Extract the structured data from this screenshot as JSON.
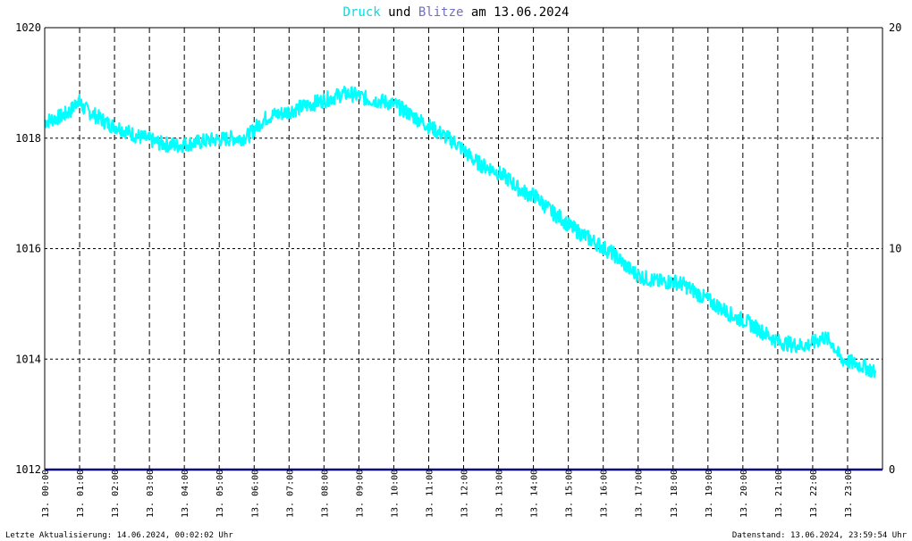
{
  "title": {
    "part1": "Druck",
    "part2": " und ",
    "part3": "Blitze",
    "part4": " am 13.06.2024",
    "color1": "#00e0e0",
    "color3": "#7070c0",
    "color_text": "#000000"
  },
  "footer": {
    "left": "Letzte Aktualisierung: 14.06.2024, 00:02:02 Uhr",
    "right": "Datenstand: 13.06.2024, 23:59:54 Uhr"
  },
  "chart_data": {
    "type": "line",
    "title": "Druck und Blitze am 13.06.2024",
    "grid": true,
    "y_left": {
      "min": 1012,
      "max": 1020,
      "ticks": [
        "1012",
        "1014",
        "1016",
        "1018",
        "1020"
      ]
    },
    "y_right": {
      "min": 0,
      "max": 20,
      "ticks": [
        "0",
        "10",
        "20"
      ]
    },
    "x_range_hours": [
      0,
      24
    ],
    "x_ticks": [
      {
        "hour": 0,
        "label": "13. 00:00"
      },
      {
        "hour": 1,
        "label": "13. 01:00"
      },
      {
        "hour": 2,
        "label": "13. 02:00"
      },
      {
        "hour": 3,
        "label": "13. 03:00"
      },
      {
        "hour": 4,
        "label": "13. 04:00"
      },
      {
        "hour": 5,
        "label": "13. 05:00"
      },
      {
        "hour": 6,
        "label": "13. 06:00"
      },
      {
        "hour": 7,
        "label": "13. 07:00"
      },
      {
        "hour": 8,
        "label": "13. 08:00"
      },
      {
        "hour": 9,
        "label": "13. 09:00"
      },
      {
        "hour": 10,
        "label": "13. 10:00"
      },
      {
        "hour": 11,
        "label": "13. 11:00"
      },
      {
        "hour": 12,
        "label": "13. 12:00"
      },
      {
        "hour": 13,
        "label": "13. 13:00"
      },
      {
        "hour": 14,
        "label": "13. 14:00"
      },
      {
        "hour": 15,
        "label": "13. 15:00"
      },
      {
        "hour": 16,
        "label": "13. 16:00"
      },
      {
        "hour": 17,
        "label": "13. 17:00"
      },
      {
        "hour": 18,
        "label": "13. 18:00"
      },
      {
        "hour": 19,
        "label": "13. 19:00"
      },
      {
        "hour": 20,
        "label": "13. 20:00"
      },
      {
        "hour": 21,
        "label": "13. 21:00"
      },
      {
        "hour": 22,
        "label": "13. 22:00"
      },
      {
        "hour": 23,
        "label": "13. 23:00"
      }
    ],
    "series": [
      {
        "name": "Druck",
        "axis": "left",
        "color": "#00ffff",
        "points": [
          [
            0.0,
            1018.3
          ],
          [
            0.25,
            1018.35
          ],
          [
            0.5,
            1018.4
          ],
          [
            0.75,
            1018.5
          ],
          [
            0.95,
            1018.7
          ],
          [
            1.1,
            1018.55
          ],
          [
            1.35,
            1018.45
          ],
          [
            1.6,
            1018.35
          ],
          [
            1.85,
            1018.25
          ],
          [
            2.1,
            1018.2
          ],
          [
            2.35,
            1018.12
          ],
          [
            2.6,
            1018.05
          ],
          [
            2.85,
            1018.0
          ],
          [
            3.1,
            1017.95
          ],
          [
            3.35,
            1017.9
          ],
          [
            3.6,
            1017.88
          ],
          [
            3.85,
            1017.87
          ],
          [
            4.1,
            1017.9
          ],
          [
            4.35,
            1017.92
          ],
          [
            4.6,
            1017.95
          ],
          [
            4.85,
            1017.97
          ],
          [
            5.1,
            1017.98
          ],
          [
            5.35,
            1018.0
          ],
          [
            5.6,
            1018.0
          ],
          [
            5.85,
            1018.05
          ],
          [
            6.05,
            1018.2
          ],
          [
            6.3,
            1018.35
          ],
          [
            6.55,
            1018.42
          ],
          [
            6.8,
            1018.45
          ],
          [
            7.05,
            1018.5
          ],
          [
            7.3,
            1018.55
          ],
          [
            7.55,
            1018.6
          ],
          [
            7.8,
            1018.65
          ],
          [
            8.05,
            1018.7
          ],
          [
            8.3,
            1018.75
          ],
          [
            8.55,
            1018.8
          ],
          [
            8.8,
            1018.8
          ],
          [
            9.05,
            1018.75
          ],
          [
            9.3,
            1018.7
          ],
          [
            9.55,
            1018.68
          ],
          [
            9.8,
            1018.65
          ],
          [
            10.05,
            1018.6
          ],
          [
            10.3,
            1018.5
          ],
          [
            10.55,
            1018.4
          ],
          [
            10.8,
            1018.3
          ],
          [
            11.05,
            1018.2
          ],
          [
            11.3,
            1018.1
          ],
          [
            11.55,
            1018.0
          ],
          [
            11.8,
            1017.9
          ],
          [
            12.05,
            1017.75
          ],
          [
            12.3,
            1017.6
          ],
          [
            12.55,
            1017.5
          ],
          [
            12.8,
            1017.45
          ],
          [
            13.05,
            1017.35
          ],
          [
            13.3,
            1017.25
          ],
          [
            13.55,
            1017.1
          ],
          [
            13.8,
            1017.0
          ],
          [
            14.05,
            1016.95
          ],
          [
            14.3,
            1016.8
          ],
          [
            14.55,
            1016.65
          ],
          [
            14.8,
            1016.55
          ],
          [
            15.05,
            1016.4
          ],
          [
            15.3,
            1016.3
          ],
          [
            15.55,
            1016.2
          ],
          [
            15.8,
            1016.1
          ],
          [
            16.05,
            1016.0
          ],
          [
            16.3,
            1015.9
          ],
          [
            16.55,
            1015.75
          ],
          [
            16.8,
            1015.6
          ],
          [
            17.05,
            1015.5
          ],
          [
            17.3,
            1015.45
          ],
          [
            17.55,
            1015.4
          ],
          [
            17.8,
            1015.4
          ],
          [
            18.05,
            1015.4
          ],
          [
            18.3,
            1015.35
          ],
          [
            18.55,
            1015.25
          ],
          [
            18.8,
            1015.15
          ],
          [
            19.05,
            1015.05
          ],
          [
            19.3,
            1014.95
          ],
          [
            19.55,
            1014.85
          ],
          [
            19.8,
            1014.75
          ],
          [
            20.05,
            1014.7
          ],
          [
            20.3,
            1014.6
          ],
          [
            20.55,
            1014.5
          ],
          [
            20.8,
            1014.4
          ],
          [
            21.05,
            1014.3
          ],
          [
            21.3,
            1014.28
          ],
          [
            21.55,
            1014.25
          ],
          [
            21.8,
            1014.25
          ],
          [
            22.05,
            1014.3
          ],
          [
            22.3,
            1014.4
          ],
          [
            22.55,
            1014.3
          ],
          [
            22.8,
            1014.0
          ],
          [
            23.05,
            1013.95
          ],
          [
            23.3,
            1013.9
          ],
          [
            23.55,
            1013.85
          ],
          [
            23.8,
            1013.75
          ]
        ]
      },
      {
        "name": "Blitze",
        "axis": "right",
        "color": "#000080",
        "points": [
          [
            0,
            0
          ],
          [
            24,
            0
          ]
        ]
      }
    ]
  }
}
